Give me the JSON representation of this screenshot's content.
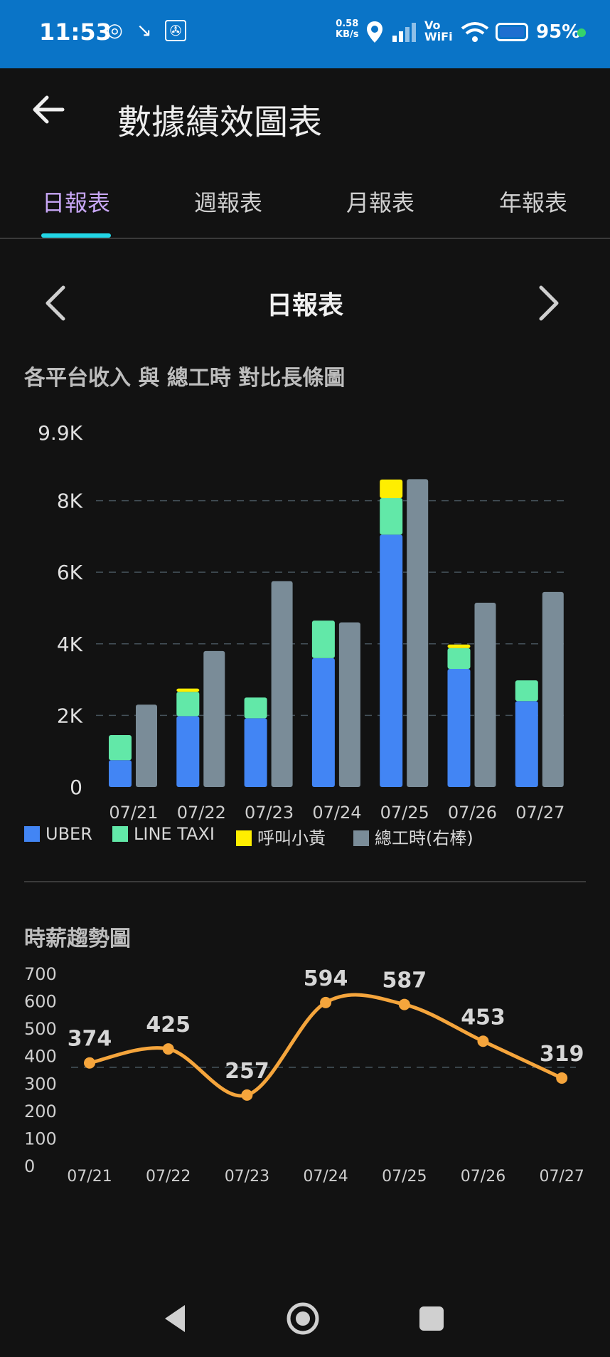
{
  "status_bar": {
    "time": "11:53",
    "net_speed_value": "0.58",
    "net_speed_unit": "KB/s",
    "vowifi_line1": "Vo",
    "vowifi_line2": "WiFi",
    "battery": "95%"
  },
  "app_bar": {
    "title": "數據績效圖表"
  },
  "tabs": [
    {
      "label": "日報表",
      "active": true
    },
    {
      "label": "週報表",
      "active": false
    },
    {
      "label": "月報表",
      "active": false
    },
    {
      "label": "年報表",
      "active": false
    }
  ],
  "period_nav": {
    "title": "日報表"
  },
  "colors": {
    "uber": "#4285f4",
    "line_taxi": "#62e8a8",
    "yellow_cab": "#ffee00",
    "hours": "#7a8c98",
    "line": "#f5a53c"
  },
  "chart_data": [
    {
      "type": "bar",
      "title": "各平台收入 與 總工時 對比長條圖",
      "categories": [
        "07/21",
        "07/22",
        "07/23",
        "07/24",
        "07/25",
        "07/26",
        "07/27"
      ],
      "y_ticks": [
        "0",
        "2K",
        "4K",
        "6K",
        "8K",
        "9.9K"
      ],
      "y_tick_values": [
        0,
        2000,
        4000,
        6000,
        8000,
        9900
      ],
      "ylim": [
        0,
        9900
      ],
      "grid": true,
      "legend_position": "bottom-left",
      "stacked_series": [
        {
          "name": "UBER",
          "values": [
            750,
            1980,
            1920,
            3600,
            7050,
            3300,
            2400
          ]
        },
        {
          "name": "LINE TAXI",
          "values": [
            700,
            680,
            580,
            1050,
            1020,
            580,
            580
          ]
        },
        {
          "name": "呼叫小黃",
          "values": [
            0,
            90,
            0,
            0,
            520,
            100,
            0
          ]
        }
      ],
      "secondary_series": {
        "name": "總工時(右棒)",
        "values": [
          2300,
          3800,
          5750,
          4600,
          8600,
          5150,
          5450
        ]
      }
    },
    {
      "type": "line",
      "title": "時薪趨勢圖",
      "categories": [
        "07/21",
        "07/22",
        "07/23",
        "07/24",
        "07/25",
        "07/26",
        "07/27"
      ],
      "values": [
        374,
        425,
        257,
        594,
        587,
        453,
        319
      ],
      "point_labels": [
        "374",
        "425",
        "257",
        "594",
        "587",
        "453",
        "319"
      ],
      "y_ticks": [
        "0",
        "100",
        "200",
        "300",
        "400",
        "500",
        "600",
        "700"
      ],
      "y_tick_values": [
        0,
        100,
        200,
        300,
        400,
        500,
        600,
        700
      ],
      "ylim": [
        0,
        700
      ],
      "average_line": 358,
      "grid": false
    }
  ]
}
